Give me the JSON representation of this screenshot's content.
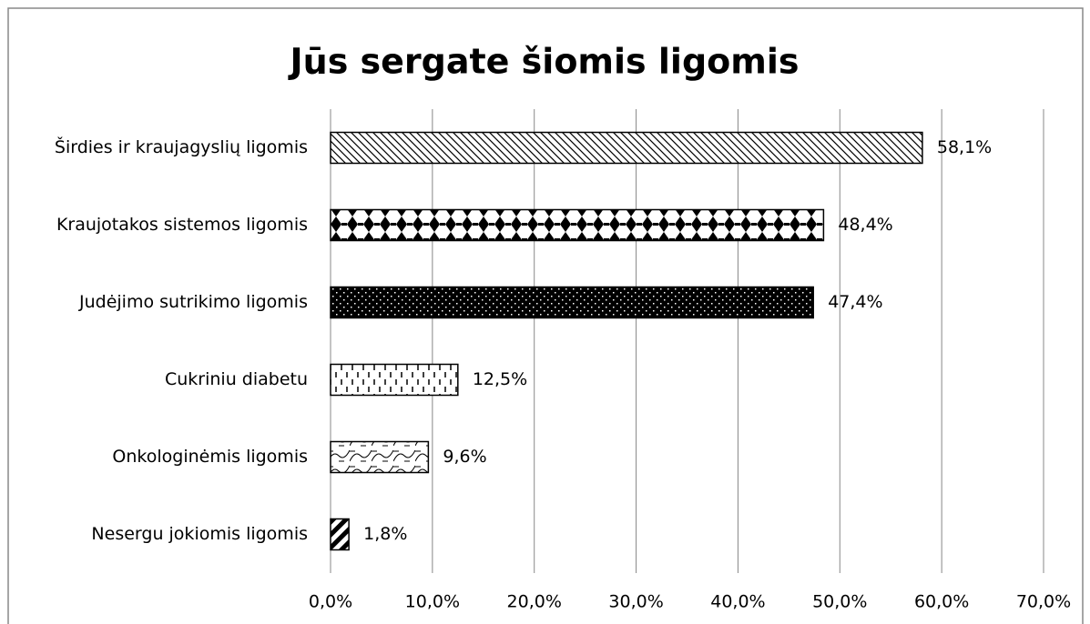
{
  "chart_data": {
    "type": "bar",
    "orientation": "horizontal",
    "title": "Jūs sergate šiomis ligomis",
    "categories": [
      "Širdies ir kraujagyslių ligomis",
      "Kraujotakos sistemos ligomis",
      "Judėjimo sutrikimo ligomis",
      "Cukriniu diabetu",
      "Onkologinėmis ligomis",
      "Nesergu jokiomis ligomis"
    ],
    "values": [
      58.1,
      48.4,
      47.4,
      12.5,
      9.6,
      1.8
    ],
    "value_labels": [
      "58,1%",
      "48,4%",
      "47,4%",
      "12,5%",
      "9,6%",
      "1,8%"
    ],
    "xlim": [
      0,
      70
    ],
    "xticks": [
      {
        "value": 0,
        "label": "0,0%"
      },
      {
        "value": 10,
        "label": "10,0%"
      },
      {
        "value": 20,
        "label": "20,0%"
      },
      {
        "value": 30,
        "label": "30,0%"
      },
      {
        "value": 40,
        "label": "40,0%"
      },
      {
        "value": 50,
        "label": "50,0%"
      },
      {
        "value": 60,
        "label": "60,0%"
      },
      {
        "value": 70,
        "label": "70,0%"
      }
    ],
    "grid": true
  }
}
